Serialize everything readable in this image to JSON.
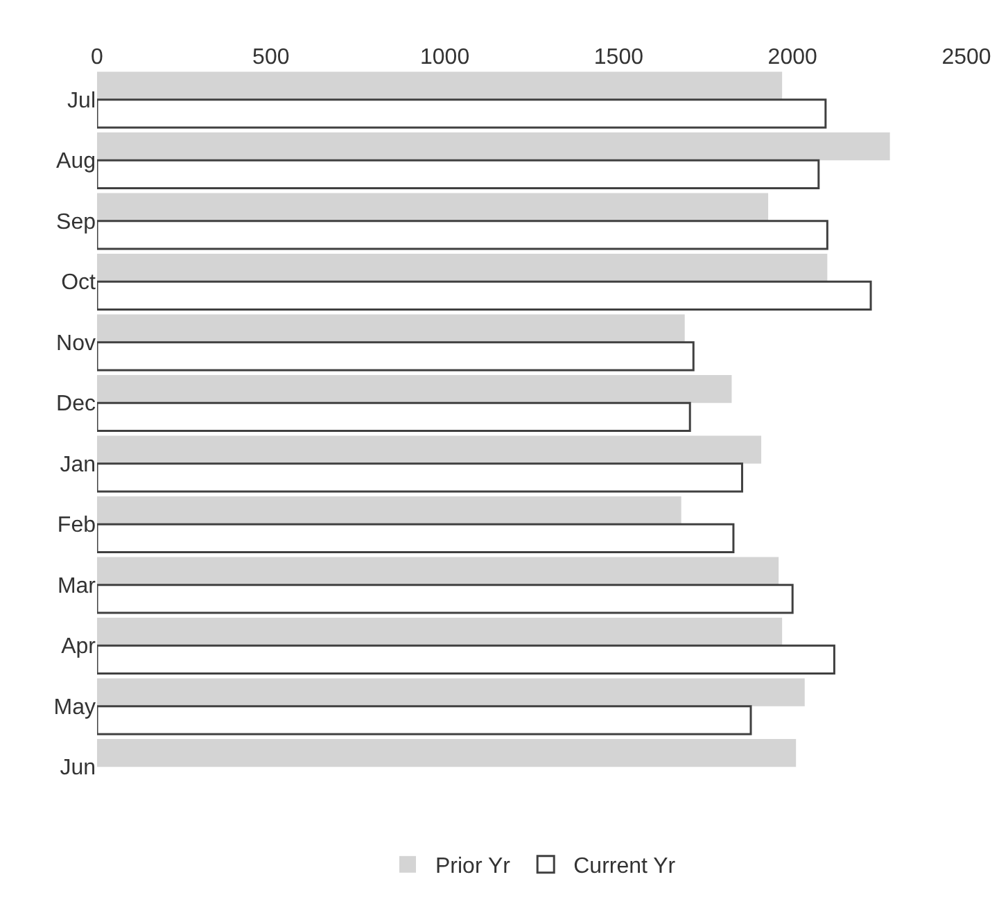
{
  "chart_data": {
    "type": "bar",
    "orientation": "horizontal",
    "categories": [
      "Jul",
      "Aug",
      "Sep",
      "Oct",
      "Nov",
      "Dec",
      "Jan",
      "Feb",
      "Mar",
      "Apr",
      "May",
      "Jun"
    ],
    "series": [
      {
        "name": "Prior Yr",
        "color": "#d4d4d4",
        "values": [
          1970,
          2280,
          1930,
          2100,
          1690,
          1825,
          1910,
          1680,
          1960,
          1970,
          2035,
          2010
        ]
      },
      {
        "name": "Current Yr",
        "color": "#ffffff",
        "values": [
          2095,
          2075,
          2100,
          2225,
          1715,
          1705,
          1855,
          1830,
          2000,
          2120,
          1880,
          null
        ]
      }
    ],
    "xlim": [
      0,
      2500
    ],
    "xticks": [
      0,
      500,
      1000,
      1500,
      2000,
      2500
    ],
    "legend": "bottom"
  }
}
